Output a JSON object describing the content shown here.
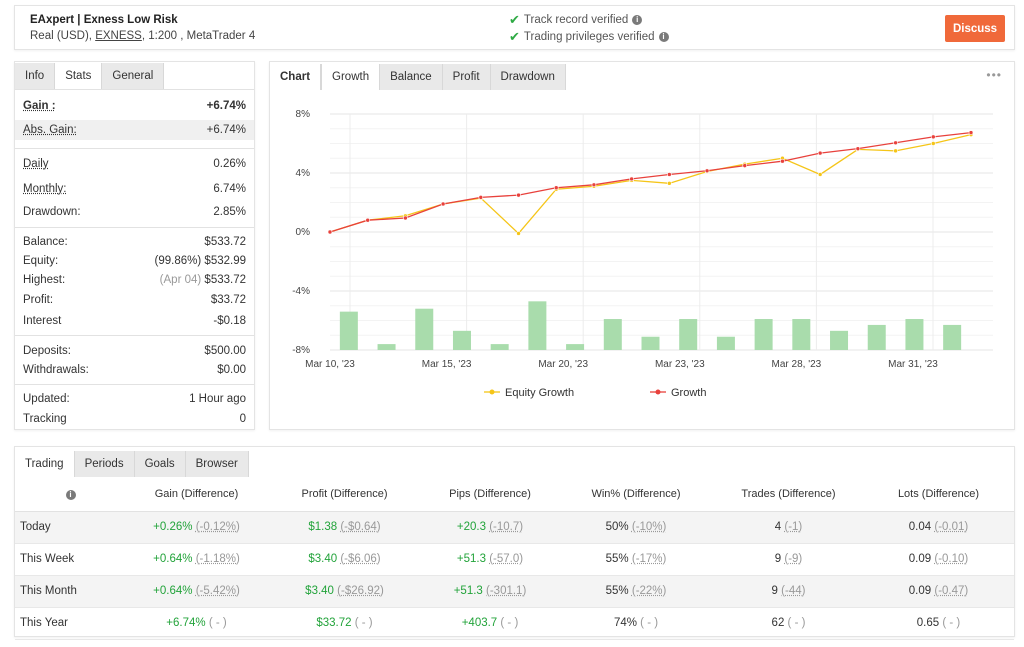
{
  "header": {
    "system_name": "EAxpert | Exness Low Risk",
    "sub_prefix": "Real (USD),",
    "broker": "EXNESS",
    "sub_suffix": ", 1:200 , MetaTrader 4",
    "verify1": "Track record verified",
    "verify2": "Trading privileges verified",
    "discuss": "Discuss"
  },
  "stats_tabs": [
    "Info",
    "Stats",
    "General"
  ],
  "stats": {
    "gain_label": "Gain :",
    "gain": "+6.74%",
    "abs_gain_label": "Abs. Gain:",
    "abs_gain": "+6.74%",
    "daily_label": "Daily",
    "daily": "0.26%",
    "monthly_label": "Monthly:",
    "monthly": "6.74%",
    "drawdown_label": "Drawdown:",
    "drawdown": "2.85%",
    "balance_label": "Balance:",
    "balance": "$533.72",
    "equity_label": "Equity:",
    "equity_pct": "(99.86%)",
    "equity": "$532.99",
    "highest_label": "Highest:",
    "highest_date": "(Apr 04)",
    "highest": "$533.72",
    "profit_label": "Profit:",
    "profit": "$33.72",
    "interest_label": "Interest",
    "interest": "-$0.18",
    "deposits_label": "Deposits:",
    "deposits": "$500.00",
    "withdrawals_label": "Withdrawals:",
    "withdrawals": "$0.00",
    "updated_label": "Updated:",
    "updated": "1 Hour ago",
    "tracking_label": "Tracking",
    "tracking": "0"
  },
  "chart_tabs": [
    "Chart",
    "Growth",
    "Balance",
    "Profit",
    "Drawdown"
  ],
  "chart_more": "•••",
  "chart_data": {
    "type": "line",
    "x_tick_labels": [
      "Mar 10, '23",
      "Mar 15, '23",
      "Mar 20, '23",
      "Mar 23, '23",
      "Mar 28, '23",
      "Mar 31, '23"
    ],
    "y_tick_labels": [
      "8%",
      "4%",
      "0%",
      "-4%",
      "-8%"
    ],
    "ylim": [
      -8,
      8
    ],
    "grid": true,
    "legend_position": "bottom",
    "series": [
      {
        "name": "Equity Growth",
        "color": "#f5c518",
        "values": [
          0,
          0.8,
          1.1,
          1.9,
          2.3,
          -0.1,
          2.9,
          3.1,
          3.5,
          3.3,
          4.1,
          4.6,
          5.0,
          3.9,
          5.6,
          5.5,
          6.0,
          6.6
        ]
      },
      {
        "name": "Growth",
        "color": "#e8413c",
        "values": [
          0,
          0.8,
          0.95,
          1.9,
          2.35,
          2.5,
          3.0,
          3.2,
          3.6,
          3.9,
          4.15,
          4.5,
          4.8,
          5.35,
          5.65,
          6.05,
          6.45,
          6.74
        ]
      }
    ],
    "bars": {
      "color": "#a9dcac",
      "values": [
        2.6,
        0.4,
        2.8,
        1.3,
        0.4,
        3.3,
        0.4,
        2.1,
        0.9,
        2.1,
        0.9,
        2.1,
        2.1,
        1.3,
        1.7,
        2.1,
        1.7
      ]
    }
  },
  "period_tabs": [
    "Trading",
    "Periods",
    "Goals",
    "Browser"
  ],
  "period_headers": [
    "Gain (Difference)",
    "Profit (Difference)",
    "Pips (Difference)",
    "Win% (Difference)",
    "Trades (Difference)",
    "Lots (Difference)"
  ],
  "period_rows": [
    {
      "name": "Today",
      "gain": "+0.26%",
      "gain_d": "(-0.12%)",
      "profit": "$1.38",
      "profit_d": "(-$0.64)",
      "pips": "+20.3",
      "pips_d": "(-10.7)",
      "win": "50%",
      "win_d": "(-10%)",
      "trades": "4",
      "trades_d": "(-1)",
      "lots": "0.04",
      "lots_d": "(-0.01)"
    },
    {
      "name": "This Week",
      "gain": "+0.64%",
      "gain_d": "(-1.18%)",
      "profit": "$3.40",
      "profit_d": "(-$6.06)",
      "pips": "+51.3",
      "pips_d": "(-57.0)",
      "win": "55%",
      "win_d": "(-17%)",
      "trades": "9",
      "trades_d": "(-9)",
      "lots": "0.09",
      "lots_d": "(-0.10)"
    },
    {
      "name": "This Month",
      "gain": "+0.64%",
      "gain_d": "(-5.42%)",
      "profit": "$3.40",
      "profit_d": "(-$26.92)",
      "pips": "+51.3",
      "pips_d": "(-301.1)",
      "win": "55%",
      "win_d": "(-22%)",
      "trades": "9",
      "trades_d": "(-44)",
      "lots": "0.09",
      "lots_d": "(-0.47)"
    },
    {
      "name": "This Year",
      "gain": "+6.74%",
      "gain_d": "( - )",
      "profit": "$33.72",
      "profit_d": "( - )",
      "pips": "+403.7",
      "pips_d": "( - )",
      "win": "74%",
      "win_d": "( - )",
      "trades": "62",
      "trades_d": "( - )",
      "lots": "0.65",
      "lots_d": "( - )"
    }
  ]
}
